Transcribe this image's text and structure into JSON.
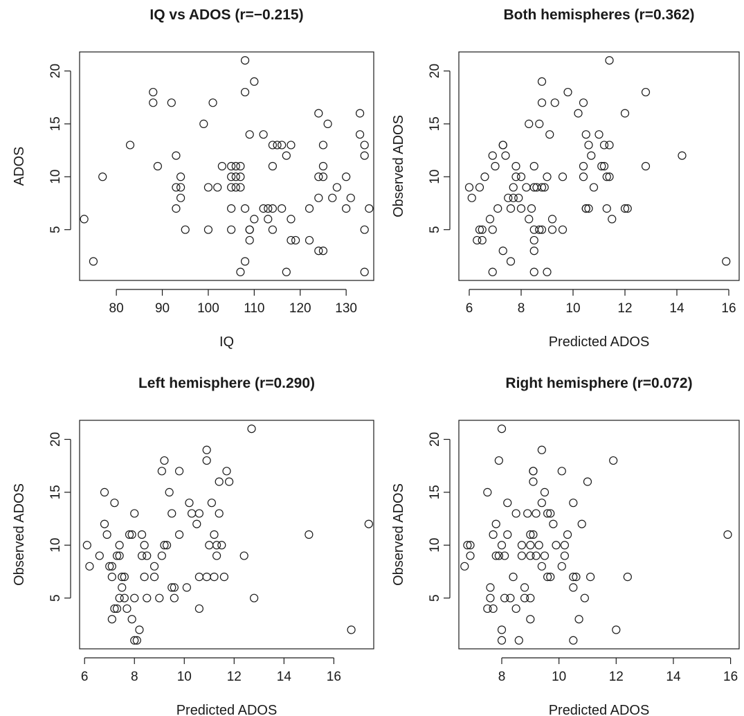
{
  "chart_data": [
    {
      "type": "scatter",
      "title": "IQ vs ADOS (r=−0.215)",
      "xlabel": "IQ",
      "ylabel": "ADOS",
      "xlim": [
        72,
        136
      ],
      "ylim": [
        0.2,
        21.8
      ],
      "xticks": [
        80,
        90,
        100,
        110,
        120,
        130
      ],
      "yticks": [
        5,
        10,
        15,
        20
      ],
      "points": [
        [
          73,
          6
        ],
        [
          75,
          2
        ],
        [
          77,
          10
        ],
        [
          83,
          13
        ],
        [
          88,
          18
        ],
        [
          88,
          17
        ],
        [
          89,
          11
        ],
        [
          92,
          17
        ],
        [
          93,
          12
        ],
        [
          93,
          9
        ],
        [
          93,
          7
        ],
        [
          94,
          10
        ],
        [
          94,
          9
        ],
        [
          94,
          8
        ],
        [
          95,
          5
        ],
        [
          99,
          15
        ],
        [
          100,
          9
        ],
        [
          100,
          5
        ],
        [
          101,
          17
        ],
        [
          102,
          9
        ],
        [
          103,
          11
        ],
        [
          105,
          11
        ],
        [
          105,
          10
        ],
        [
          105,
          9
        ],
        [
          105,
          7
        ],
        [
          105,
          5
        ],
        [
          106,
          11
        ],
        [
          106,
          10
        ],
        [
          106,
          9
        ],
        [
          107,
          11
        ],
        [
          107,
          10
        ],
        [
          107,
          9
        ],
        [
          107,
          1
        ],
        [
          108,
          21
        ],
        [
          108,
          18
        ],
        [
          108,
          7
        ],
        [
          108,
          2
        ],
        [
          109,
          14
        ],
        [
          109,
          5
        ],
        [
          109,
          5
        ],
        [
          109,
          4
        ],
        [
          110,
          19
        ],
        [
          110,
          6
        ],
        [
          112,
          14
        ],
        [
          112,
          7
        ],
        [
          113,
          7
        ],
        [
          113,
          6
        ],
        [
          114,
          13
        ],
        [
          114,
          11
        ],
        [
          114,
          7
        ],
        [
          114,
          5
        ],
        [
          115,
          13
        ],
        [
          116,
          13
        ],
        [
          116,
          7
        ],
        [
          117,
          12
        ],
        [
          117,
          1
        ],
        [
          118,
          13
        ],
        [
          118,
          6
        ],
        [
          118,
          4
        ],
        [
          119,
          4
        ],
        [
          122,
          7
        ],
        [
          122,
          4
        ],
        [
          124,
          16
        ],
        [
          124,
          10
        ],
        [
          124,
          8
        ],
        [
          124,
          3
        ],
        [
          125,
          13
        ],
        [
          125,
          11
        ],
        [
          125,
          10
        ],
        [
          125,
          3
        ],
        [
          126,
          15
        ],
        [
          127,
          8
        ],
        [
          128,
          9
        ],
        [
          130,
          10
        ],
        [
          130,
          7
        ],
        [
          131,
          8
        ],
        [
          133,
          16
        ],
        [
          133,
          14
        ],
        [
          134,
          13
        ],
        [
          134,
          12
        ],
        [
          134,
          5
        ],
        [
          134,
          1
        ],
        [
          135,
          7
        ]
      ]
    },
    {
      "type": "scatter",
      "title": "Both hemispheres (r=0.362)",
      "xlabel": "Predicted ADOS",
      "ylabel": "Observed ADOS",
      "xlim": [
        5.6,
        16.4
      ],
      "ylim": [
        0.2,
        21.8
      ],
      "xticks": [
        6,
        8,
        10,
        12,
        14,
        16
      ],
      "yticks": [
        5,
        10,
        15,
        20
      ],
      "points": [
        [
          6,
          9
        ],
        [
          6.1,
          8
        ],
        [
          6.3,
          4
        ],
        [
          6.4,
          9
        ],
        [
          6.4,
          5
        ],
        [
          6.5,
          5
        ],
        [
          6.5,
          4
        ],
        [
          6.6,
          10
        ],
        [
          6.8,
          6
        ],
        [
          6.9,
          12
        ],
        [
          6.9,
          5
        ],
        [
          6.9,
          1
        ],
        [
          7,
          11
        ],
        [
          7.1,
          7
        ],
        [
          7.3,
          13
        ],
        [
          7.3,
          13
        ],
        [
          7.4,
          12
        ],
        [
          7.3,
          3
        ],
        [
          7.5,
          8
        ],
        [
          7.6,
          2
        ],
        [
          7.6,
          7
        ],
        [
          7.7,
          9
        ],
        [
          7.7,
          8
        ],
        [
          7.8,
          11
        ],
        [
          7.8,
          10
        ],
        [
          7.9,
          8
        ],
        [
          8,
          10
        ],
        [
          8,
          7
        ],
        [
          8.2,
          9
        ],
        [
          8.3,
          6
        ],
        [
          8.3,
          15
        ],
        [
          8.4,
          7
        ],
        [
          8.5,
          11
        ],
        [
          8.5,
          9
        ],
        [
          8.5,
          5
        ],
        [
          8.5,
          4
        ],
        [
          8.5,
          3
        ],
        [
          8.5,
          1
        ],
        [
          8.6,
          9
        ],
        [
          8.7,
          5
        ],
        [
          8.7,
          15
        ],
        [
          8.8,
          19
        ],
        [
          8.8,
          17
        ],
        [
          8.8,
          9
        ],
        [
          8.8,
          5
        ],
        [
          8.9,
          9
        ],
        [
          9,
          10
        ],
        [
          9,
          1
        ],
        [
          9.1,
          14
        ],
        [
          9.2,
          6
        ],
        [
          9.2,
          5
        ],
        [
          9.3,
          17
        ],
        [
          9.6,
          10
        ],
        [
          9.6,
          5
        ],
        [
          9.8,
          18
        ],
        [
          10.2,
          16
        ],
        [
          10.4,
          17
        ],
        [
          10.4,
          11
        ],
        [
          10.4,
          10
        ],
        [
          10.5,
          7
        ],
        [
          10.5,
          7
        ],
        [
          10.5,
          14
        ],
        [
          10.6,
          13
        ],
        [
          10.6,
          7
        ],
        [
          10.7,
          12
        ],
        [
          10.8,
          9
        ],
        [
          11,
          14
        ],
        [
          11.1,
          11
        ],
        [
          11.2,
          13
        ],
        [
          11.2,
          11
        ],
        [
          11.3,
          10
        ],
        [
          11.4,
          21
        ],
        [
          11.4,
          13
        ],
        [
          11.3,
          7
        ],
        [
          11.4,
          10
        ],
        [
          11.5,
          6
        ],
        [
          12,
          16
        ],
        [
          12,
          7
        ],
        [
          12.1,
          7
        ],
        [
          12.8,
          18
        ],
        [
          12.8,
          11
        ],
        [
          14.2,
          12
        ],
        [
          15.9,
          2
        ]
      ]
    },
    {
      "type": "scatter",
      "title": "Left hemisphere (r=0.290)",
      "xlabel": "Predicted ADOS",
      "ylabel": "Observed ADOS",
      "xlim": [
        5.8,
        17.6
      ],
      "ylim": [
        0.2,
        21.8
      ],
      "xticks": [
        6,
        8,
        10,
        12,
        14,
        16
      ],
      "yticks": [
        5,
        10,
        15,
        20
      ],
      "points": [
        [
          6.1,
          10
        ],
        [
          6.2,
          8
        ],
        [
          6.6,
          9
        ],
        [
          6.8,
          15
        ],
        [
          6.8,
          12
        ],
        [
          6.9,
          11
        ],
        [
          7,
          8
        ],
        [
          7.1,
          8
        ],
        [
          7.1,
          7
        ],
        [
          7.1,
          3
        ],
        [
          7.2,
          14
        ],
        [
          7.2,
          4
        ],
        [
          7.3,
          4
        ],
        [
          7.3,
          9
        ],
        [
          7.4,
          9
        ],
        [
          7.4,
          5
        ],
        [
          7.4,
          10
        ],
        [
          7.5,
          7
        ],
        [
          7.5,
          6
        ],
        [
          7.6,
          5
        ],
        [
          7.6,
          7
        ],
        [
          7.7,
          4
        ],
        [
          7.8,
          11
        ],
        [
          7.9,
          11
        ],
        [
          7.9,
          3
        ],
        [
          8,
          13
        ],
        [
          8,
          1
        ],
        [
          8,
          5
        ],
        [
          8.1,
          1
        ],
        [
          8.2,
          2
        ],
        [
          8.3,
          11
        ],
        [
          8.3,
          9
        ],
        [
          8.4,
          10
        ],
        [
          8.4,
          7
        ],
        [
          8.5,
          9
        ],
        [
          8.5,
          5
        ],
        [
          8.8,
          7
        ],
        [
          8.8,
          8
        ],
        [
          9,
          5
        ],
        [
          9.1,
          17
        ],
        [
          9.1,
          9
        ],
        [
          9.2,
          18
        ],
        [
          9.2,
          10
        ],
        [
          9.3,
          10
        ],
        [
          9.4,
          15
        ],
        [
          9.5,
          13
        ],
        [
          9.5,
          6
        ],
        [
          9.6,
          5
        ],
        [
          9.6,
          6
        ],
        [
          9.8,
          17
        ],
        [
          9.8,
          11
        ],
        [
          10.1,
          6
        ],
        [
          10.2,
          14
        ],
        [
          10.3,
          13
        ],
        [
          10.5,
          12
        ],
        [
          10.6,
          13
        ],
        [
          10.6,
          4
        ],
        [
          10.6,
          7
        ],
        [
          10.9,
          19
        ],
        [
          10.9,
          18
        ],
        [
          10.9,
          7
        ],
        [
          11,
          10
        ],
        [
          11.1,
          14
        ],
        [
          11.2,
          11
        ],
        [
          11.2,
          7
        ],
        [
          11.3,
          9
        ],
        [
          11.3,
          10
        ],
        [
          11.4,
          13
        ],
        [
          11.4,
          16
        ],
        [
          11.5,
          10
        ],
        [
          11.6,
          7
        ],
        [
          11.7,
          17
        ],
        [
          11.8,
          16
        ],
        [
          12.4,
          9
        ],
        [
          12.7,
          21
        ],
        [
          12.8,
          5
        ],
        [
          15,
          11
        ],
        [
          16.7,
          2
        ],
        [
          17.4,
          12
        ]
      ]
    },
    {
      "type": "scatter",
      "title": "Right hemisphere (r=0.072)",
      "xlabel": "Predicted ADOS",
      "ylabel": "Observed ADOS",
      "xlim": [
        6.5,
        16.3
      ],
      "ylim": [
        0.2,
        21.8
      ],
      "xticks": [
        8,
        10,
        12,
        14,
        16
      ],
      "yticks": [
        5,
        10,
        15,
        20
      ],
      "points": [
        [
          6.7,
          8
        ],
        [
          6.8,
          10
        ],
        [
          6.9,
          10
        ],
        [
          6.9,
          9
        ],
        [
          7.5,
          15
        ],
        [
          7.5,
          4
        ],
        [
          7.6,
          5
        ],
        [
          7.6,
          6
        ],
        [
          7.7,
          11
        ],
        [
          7.7,
          4
        ],
        [
          7.8,
          9
        ],
        [
          7.8,
          12
        ],
        [
          7.9,
          18
        ],
        [
          7.9,
          9
        ],
        [
          8,
          21
        ],
        [
          8,
          10
        ],
        [
          8,
          2
        ],
        [
          8,
          1
        ],
        [
          8.1,
          9
        ],
        [
          8.1,
          5
        ],
        [
          8.2,
          14
        ],
        [
          8.2,
          11
        ],
        [
          8.3,
          5
        ],
        [
          8.4,
          7
        ],
        [
          8.5,
          13
        ],
        [
          8.5,
          4
        ],
        [
          8.6,
          1
        ],
        [
          8.7,
          10
        ],
        [
          8.7,
          9
        ],
        [
          8.8,
          6
        ],
        [
          8.8,
          5
        ],
        [
          8.9,
          13
        ],
        [
          9,
          11
        ],
        [
          9,
          10
        ],
        [
          9,
          9
        ],
        [
          9,
          5
        ],
        [
          9,
          3
        ],
        [
          9.1,
          17
        ],
        [
          9.1,
          17
        ],
        [
          9.1,
          16
        ],
        [
          9.1,
          11
        ],
        [
          9.2,
          13
        ],
        [
          9.2,
          9
        ],
        [
          9.3,
          10
        ],
        [
          9.4,
          19
        ],
        [
          9.4,
          8
        ],
        [
          9.4,
          14
        ],
        [
          9.5,
          15
        ],
        [
          9.5,
          9
        ],
        [
          9.6,
          13
        ],
        [
          9.6,
          7
        ],
        [
          9.7,
          13
        ],
        [
          9.7,
          7
        ],
        [
          9.8,
          12
        ],
        [
          9.9,
          10
        ],
        [
          10.1,
          17
        ],
        [
          10.1,
          8
        ],
        [
          10.2,
          10
        ],
        [
          10.2,
          9
        ],
        [
          10.3,
          11
        ],
        [
          10.5,
          14
        ],
        [
          10.5,
          7
        ],
        [
          10.5,
          6
        ],
        [
          10.5,
          1
        ],
        [
          10.6,
          7
        ],
        [
          10.7,
          3
        ],
        [
          10.8,
          12
        ],
        [
          10.9,
          5
        ],
        [
          11,
          16
        ],
        [
          11.1,
          7
        ],
        [
          11.9,
          18
        ],
        [
          12,
          2
        ],
        [
          12.4,
          7
        ],
        [
          15.9,
          11
        ]
      ]
    }
  ]
}
